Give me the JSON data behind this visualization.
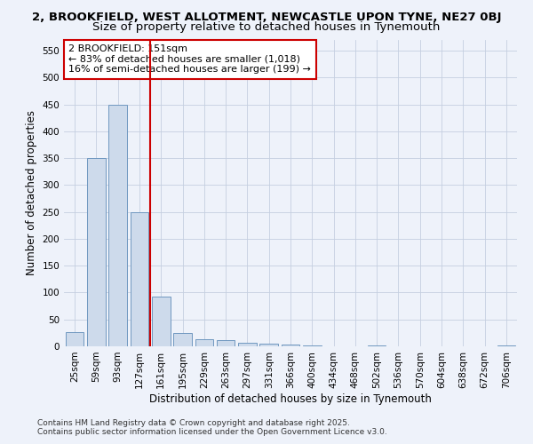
{
  "title_line1": "2, BROOKFIELD, WEST ALLOTMENT, NEWCASTLE UPON TYNE, NE27 0BJ",
  "title_line2": "Size of property relative to detached houses in Tynemouth",
  "xlabel": "Distribution of detached houses by size in Tynemouth",
  "ylabel": "Number of detached properties",
  "categories": [
    "25sqm",
    "59sqm",
    "93sqm",
    "127sqm",
    "161sqm",
    "195sqm",
    "229sqm",
    "263sqm",
    "297sqm",
    "331sqm",
    "366sqm",
    "400sqm",
    "434sqm",
    "468sqm",
    "502sqm",
    "536sqm",
    "570sqm",
    "604sqm",
    "638sqm",
    "672sqm",
    "706sqm"
  ],
  "values": [
    27,
    350,
    450,
    250,
    93,
    25,
    14,
    11,
    7,
    5,
    4,
    1,
    0,
    0,
    1,
    0,
    0,
    0,
    0,
    0,
    2
  ],
  "bar_color": "#cddaeb",
  "bar_edge_color": "#7098c0",
  "vline_x_index": 3.5,
  "vline_color": "#cc0000",
  "annotation_line1": "2 BROOKFIELD: 151sqm",
  "annotation_line2": "← 83% of detached houses are smaller (1,018)",
  "annotation_line3": "16% of semi-detached houses are larger (199) →",
  "annotation_box_color": "#ffffff",
  "annotation_box_edge_color": "#cc0000",
  "ylim": [
    0,
    570
  ],
  "yticks": [
    0,
    50,
    100,
    150,
    200,
    250,
    300,
    350,
    400,
    450,
    500,
    550
  ],
  "footer_line1": "Contains HM Land Registry data © Crown copyright and database right 2025.",
  "footer_line2": "Contains public sector information licensed under the Open Government Licence v3.0.",
  "background_color": "#eef2fa",
  "grid_color": "#c5cfe0",
  "title_fontsize": 9.5,
  "subtitle_fontsize": 9.5,
  "axis_label_fontsize": 8.5,
  "tick_fontsize": 7.5,
  "annotation_fontsize": 8,
  "footer_fontsize": 6.5
}
